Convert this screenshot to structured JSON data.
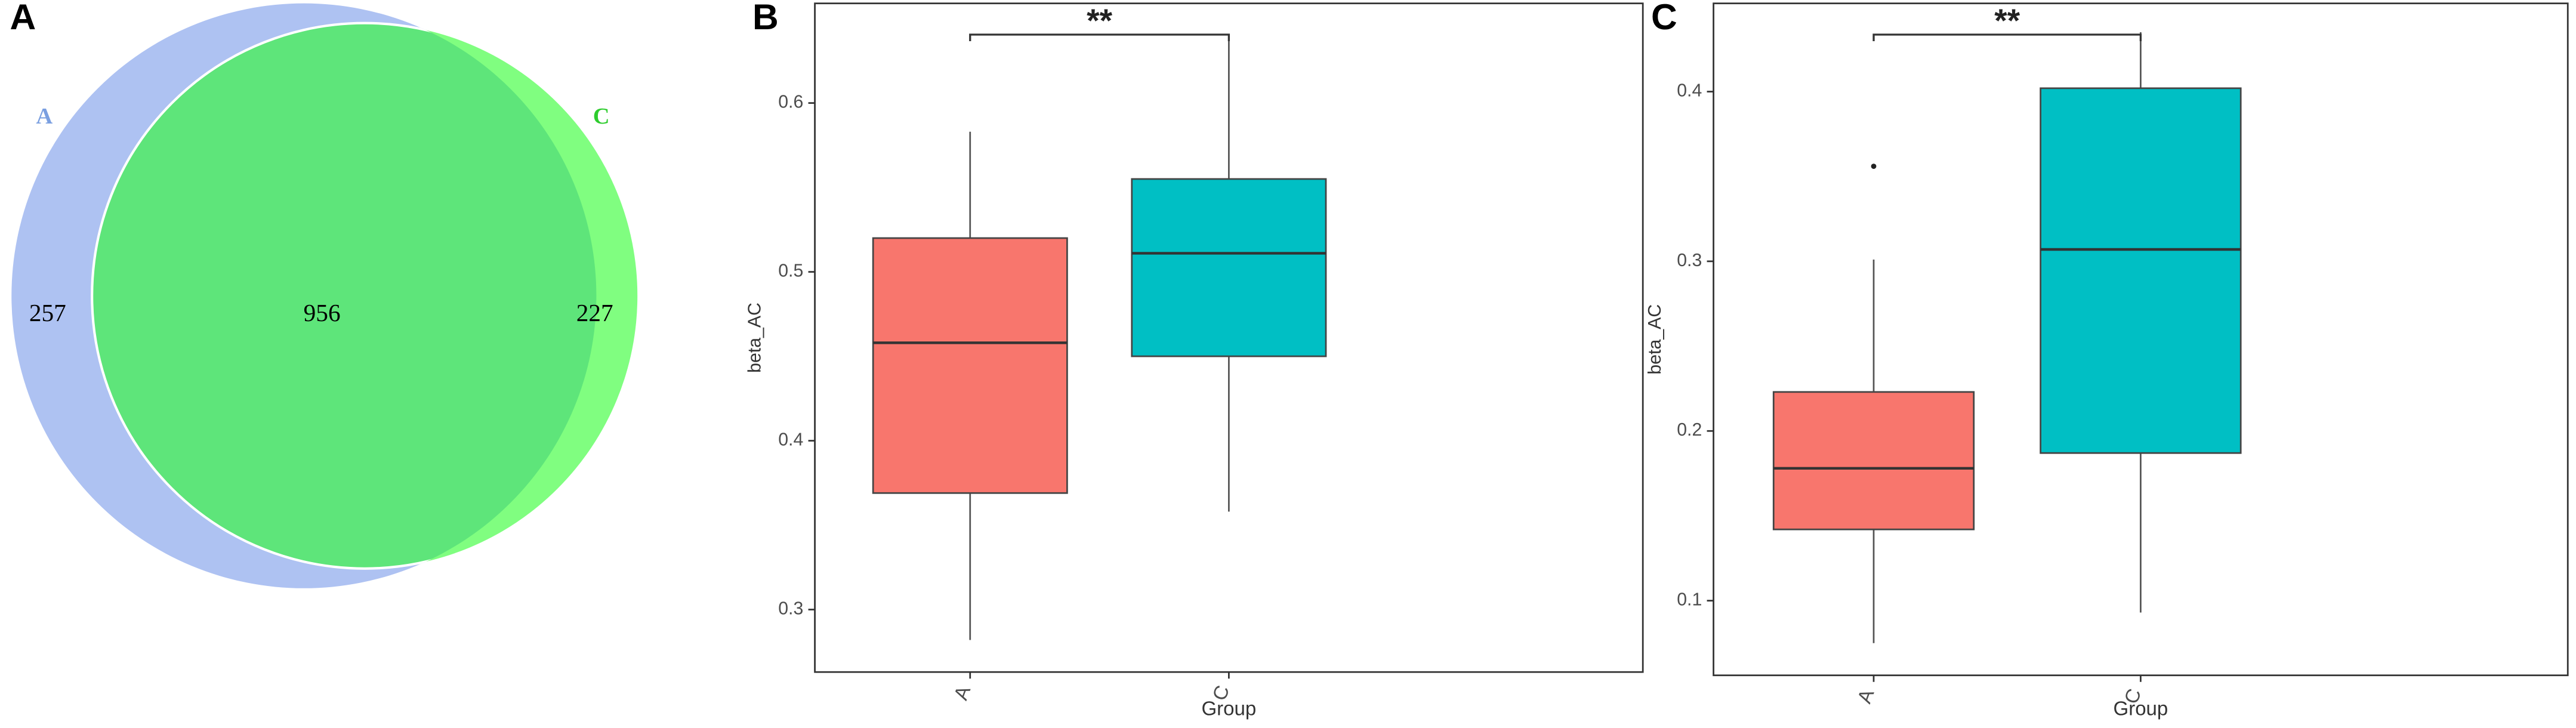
{
  "chart_data": [
    {
      "type": "venn",
      "panel_label": "A",
      "sets": [
        {
          "name": "A",
          "color": "#aec2f2"
        },
        {
          "name": "C",
          "color": "#80fe80"
        }
      ],
      "overlap_color": "#5ee57a",
      "values": [
        257,
        956,
        227
      ]
    },
    {
      "type": "box",
      "panel_label": "B",
      "categories": [
        "A",
        "C"
      ],
      "colors": [
        "#f8766d",
        "#00bfc4"
      ],
      "stats": [
        {
          "min": 0.282,
          "q1": 0.369,
          "median": 0.458,
          "q3": 0.52,
          "max": 0.583
        },
        {
          "min": 0.358,
          "q1": 0.45,
          "median": 0.511,
          "q3": 0.555,
          "max": 0.641
        }
      ],
      "ylim": [
        0.263,
        0.659
      ],
      "yticks": [
        0.3,
        0.4,
        0.5,
        0.6
      ],
      "x_label": "Group",
      "y_label": "beta_AC",
      "significance": "**"
    },
    {
      "type": "box",
      "panel_label": "C",
      "categories": [
        "A",
        "C"
      ],
      "colors": [
        "#f8766d",
        "#00bfc4"
      ],
      "stats": [
        {
          "min": 0.075,
          "q1": 0.142,
          "median": 0.178,
          "q3": 0.223,
          "max": 0.301,
          "outliers": [
            0.356
          ]
        },
        {
          "min": 0.093,
          "q1": 0.187,
          "median": 0.307,
          "q3": 0.402,
          "max": 0.435
        }
      ],
      "ylim": [
        0.056,
        0.452
      ],
      "yticks": [
        0.1,
        0.2,
        0.3,
        0.4
      ],
      "x_label": "Group",
      "y_label": "beta_AC",
      "significance": "**"
    }
  ]
}
